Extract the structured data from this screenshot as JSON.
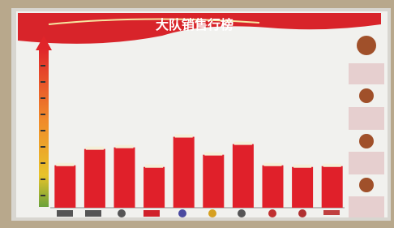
{
  "chart_data": {
    "type": "bar",
    "title": "大队销售行榜",
    "values": [
      52,
      72,
      74,
      50,
      87,
      65,
      78,
      52,
      50,
      51
    ],
    "color": "#e0202a",
    "ylim": [
      0,
      200
    ]
  }
}
